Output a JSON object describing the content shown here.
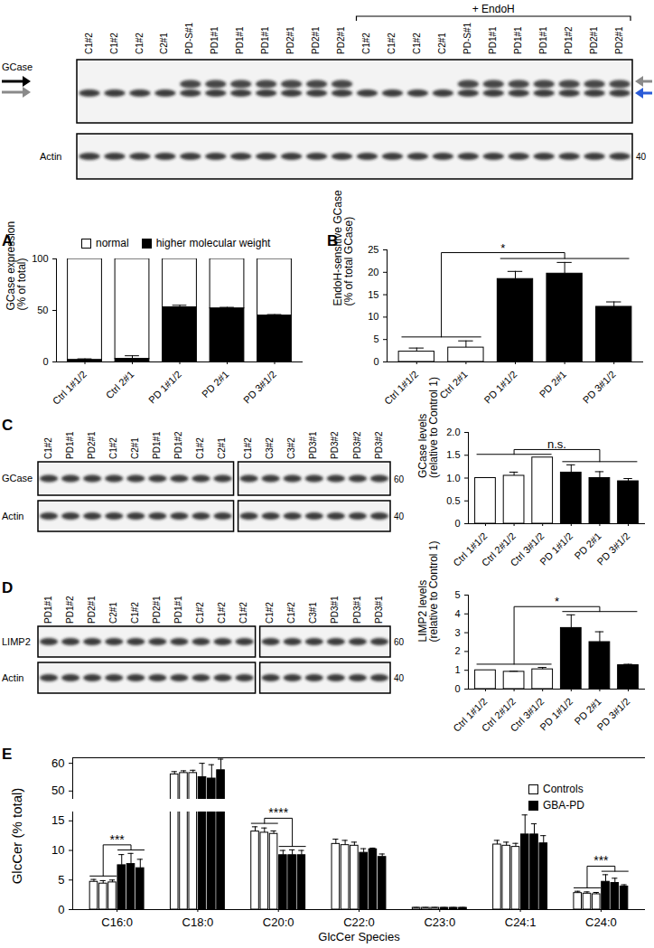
{
  "chart_data": [
    {
      "type": "bar",
      "title": "A",
      "stacked": true,
      "legend": "top",
      "y_label": "GCase expression\n(% of total)",
      "categories": [
        "Ctrl 1#1/2",
        "Ctrl 2#1",
        "PD 1#1/2",
        "PD 2#1",
        "PD 3#1/2"
      ],
      "series": [
        {
          "name": "normal",
          "color": "#ffffff",
          "values": [
            98,
            97,
            47,
            48,
            55
          ],
          "errors": [
            1,
            2,
            2,
            1,
            1
          ]
        },
        {
          "name": "higher molecular weight",
          "color": "#000000",
          "values": [
            2,
            3,
            53,
            52,
            45
          ],
          "errors": [
            1,
            3,
            2,
            1,
            1
          ]
        }
      ],
      "ylim": [
        0,
        100
      ],
      "yticks": [
        0,
        50,
        100
      ]
    },
    {
      "type": "bar",
      "title": "B",
      "y_label": "EndoH-sensitive GCase\n(% of total GCase)",
      "categories": [
        "Ctrl 1#1/2",
        "Ctrl 2#1",
        "PD 1#1/2",
        "PD 2#1",
        "PD 3#1/2"
      ],
      "values": [
        2.3,
        3.2,
        18.5,
        19.7,
        12.3
      ],
      "errors": [
        0.8,
        1.5,
        1.7,
        2.5,
        1.1
      ],
      "colors": [
        "#ffffff",
        "#ffffff",
        "#000000",
        "#000000",
        "#000000"
      ],
      "ylim": [
        0,
        25
      ],
      "yticks": [
        0,
        5,
        10,
        15,
        20,
        25
      ],
      "annotations": [
        {
          "text": "*"
        }
      ]
    },
    {
      "type": "bar",
      "y_label": "GCase levels\n(relative to Control 1)",
      "categories": [
        "Ctrl 1#1/2",
        "Ctrl 2#1/2",
        "Ctrl 3#1/2",
        "PD 1#1/2",
        "PD 2#1",
        "PD 3#1/2"
      ],
      "values": [
        1.0,
        1.05,
        1.45,
        1.12,
        1.0,
        0.93
      ],
      "errors": [
        0,
        0.08,
        0,
        0.17,
        0.14,
        0.06
      ],
      "colors": [
        "#ffffff",
        "#ffffff",
        "#ffffff",
        "#000000",
        "#000000",
        "#000000"
      ],
      "ylim": [
        0,
        2
      ],
      "yticks": [
        0,
        0.5,
        {
          "value": 1,
          "label": "1.0"
        },
        1.5,
        {
          "value": 2,
          "label": "2.0"
        }
      ],
      "annotations": [
        {
          "text": "n.s."
        }
      ]
    },
    {
      "type": "bar",
      "y_label": "LIMP2 levels\n(relative to Control 1)",
      "categories": [
        "Ctrl 1#1/2",
        "Ctrl 2#1/2",
        "Ctrl 3#1/2",
        "PD 1#1/2",
        "PD 2#1",
        "PD 3#1/2"
      ],
      "values": [
        1.0,
        0.92,
        1.05,
        3.25,
        2.5,
        1.27
      ],
      "errors": [
        0,
        0.03,
        0.1,
        0.7,
        0.55,
        0.05
      ],
      "colors": [
        "#ffffff",
        "#ffffff",
        "#ffffff",
        "#000000",
        "#000000",
        "#000000"
      ],
      "ylim": [
        0,
        5
      ],
      "yticks": [
        0,
        1,
        2,
        3,
        4,
        5
      ],
      "annotations": [
        {
          "text": "*"
        }
      ]
    },
    {
      "type": "bar",
      "title": "E",
      "legend": "top-right",
      "x_label": "GlcCer Species",
      "y_label": "GlcCer (% total)",
      "categories": [
        "C16:0",
        "C18:0",
        "C20:0",
        "C22:0",
        "C23:0",
        "C24:1",
        "C24:0"
      ],
      "series": [
        {
          "name": "Controls",
          "color": "#ffffff",
          "values": [
            [
              4.7,
              4.4,
              4.6
            ],
            [
              56,
              56.5,
              56.5
            ],
            [
              13.2,
              13.0,
              12.8
            ],
            [
              11.1,
              10.9,
              10.8
            ],
            [
              0.3,
              0.3,
              0.3
            ],
            [
              11.0,
              10.8,
              10.6
            ],
            [
              2.8,
              2.7,
              2.6
            ]
          ],
          "errors": [
            [
              0.4,
              0.5,
              0.4
            ],
            [
              1,
              0.8,
              1
            ],
            [
              0.8,
              0.8,
              0.5
            ],
            [
              0.8,
              0.8,
              0.6
            ],
            [
              0.05,
              0.05,
              0.05
            ],
            [
              0.7,
              0.6,
              0.6
            ],
            [
              0.3,
              0.3,
              0.3
            ]
          ]
        },
        {
          "name": "GBA-PD",
          "color": "#000000",
          "values": [
            [
              7.5,
              7.7,
              7.0
            ],
            [
              55,
              54.5,
              57.5
            ],
            [
              9.2,
              9.2,
              9.2
            ],
            [
              9.6,
              10.2,
              8.9
            ],
            [
              0.3,
              0.3,
              0.3
            ],
            [
              12.7,
              12.7,
              11.2
            ],
            [
              4.7,
              4.5,
              3.9
            ]
          ],
          "errors": [
            [
              1.8,
              1.8,
              1.5
            ],
            [
              5,
              5,
              4
            ],
            [
              0.8,
              0.9,
              0.8
            ],
            [
              0.7,
              0.2,
              0.5
            ],
            [
              0.05,
              0.05,
              0.05
            ],
            [
              3.3,
              1.8,
              1.3
            ],
            [
              1.2,
              0.8,
              0.3
            ]
          ]
        }
      ],
      "ylim": [
        0,
        62
      ],
      "yticks": [
        0,
        5,
        10,
        15,
        50,
        60
      ],
      "annotations": [
        {
          "text": "***",
          "category": "C16:0"
        },
        {
          "text": "****",
          "category": "C20:0"
        },
        {
          "text": "***",
          "category": "C24:0"
        }
      ]
    }
  ],
  "blots": [
    {
      "boxes": [
        {
          "groups": [
            {
              "lanes": [
                "C1#2",
                "C1#2",
                "C1#2",
                "C2#1",
                "PD-S#1",
                "PD1#1",
                "PD1#1",
                "PD1#1",
                "PD2#1",
                "PD2#1",
                "PD2#1"
              ]
            },
            {
              "label": "+ EndoH",
              "lanes": [
                "C1#2",
                "C1#2",
                "C1#2",
                "C2#1",
                "PD-S#1",
                "PD1#1",
                "PD1#1",
                "PD1#1",
                "PD1#2",
                "PD2#1",
                "PD2#1"
              ]
            }
          ]
        }
      ],
      "rows": [
        {
          "label": "GCase"
        },
        {
          "label": "Actin",
          "marker": 40
        }
      ]
    },
    {
      "panel": "C",
      "boxes": [
        {
          "groups": [
            {
              "lanes": [
                "C1#2",
                "PD1#1",
                "PD2#1",
                "C1#2",
                "C2#1",
                "PD1#1",
                "PD1#2",
                "C1#2",
                "C2#1"
              ]
            }
          ]
        },
        {
          "groups": [
            {
              "lanes": [
                "C1#2",
                "C3#2",
                "C3#2",
                "PD3#1",
                "PD3#2",
                "PD3#2",
                "PD3#2"
              ]
            }
          ]
        }
      ],
      "rows": [
        {
          "label": "GCase",
          "marker": 60
        },
        {
          "label": "Actin",
          "marker": 40
        }
      ]
    },
    {
      "panel": "D",
      "boxes": [
        {
          "groups": [
            {
              "lanes": [
                "PD1#1",
                "PD1#2",
                "PD2#1",
                "C2#1",
                "C1#2",
                "PD2#1",
                "PD1#1",
                "C1#2",
                "C1#2",
                "C1#2"
              ]
            }
          ]
        },
        {
          "groups": [
            {
              "lanes": [
                "C1#2",
                "C1#2",
                "C3#1",
                "PD3#1",
                "PD3#1",
                "PD3#1"
              ]
            }
          ]
        }
      ],
      "rows": [
        {
          "label": "LIMP2",
          "marker": 60
        },
        {
          "label": "Actin",
          "marker": 40
        }
      ]
    }
  ]
}
